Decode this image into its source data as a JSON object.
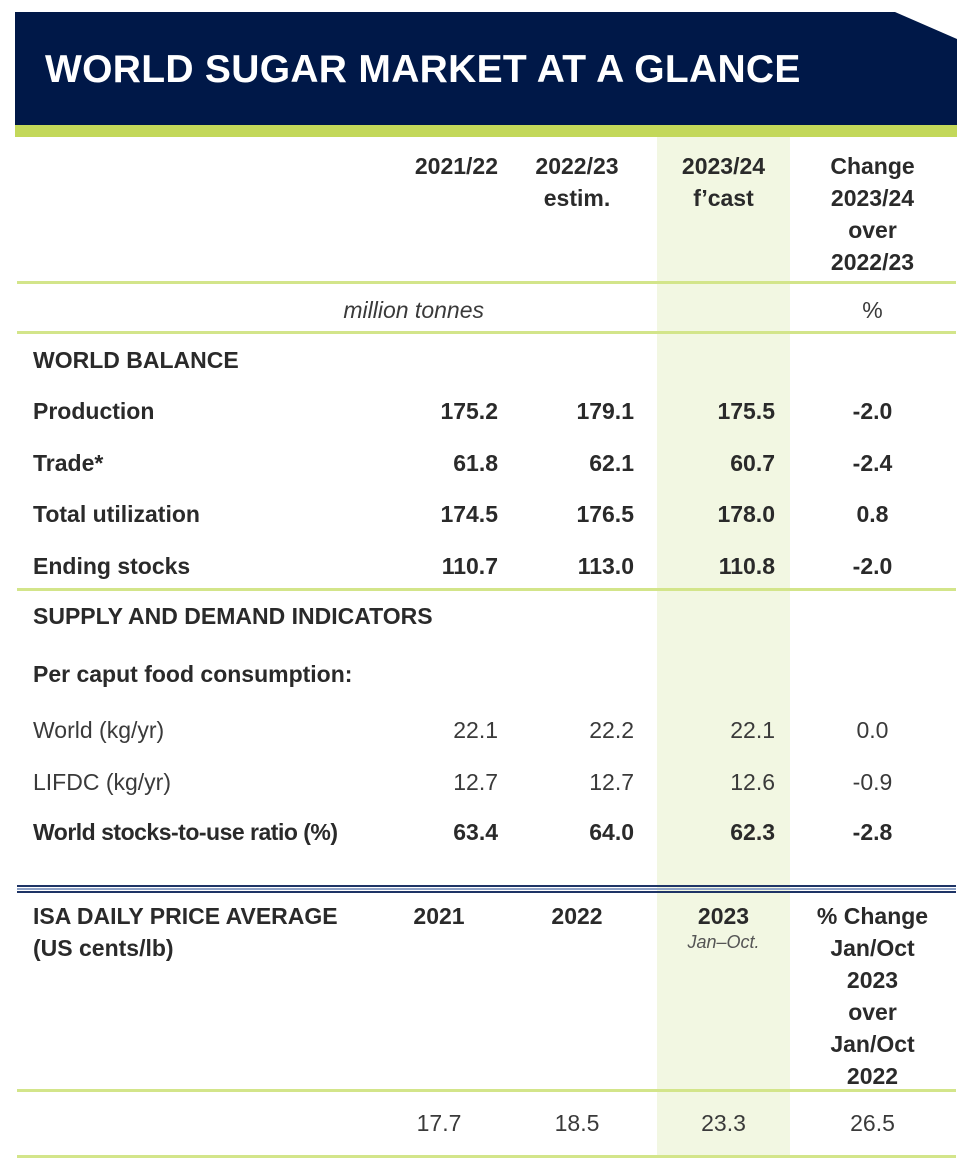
{
  "title": "WORLD SUGAR MARKET AT A GLANCE",
  "colors": {
    "navy": "#001848",
    "green": "#c3d85a",
    "highlight": "#f2f7e2"
  },
  "header": {
    "col1": "2021/22",
    "col2": [
      "2022/23",
      "estim."
    ],
    "col3": [
      "2023/24",
      "f’cast"
    ],
    "col4": [
      "Change",
      "2023/24",
      "over",
      "2022/23"
    ]
  },
  "units": {
    "main": "million tonnes",
    "change": "%"
  },
  "world_balance": {
    "heading": "WORLD BALANCE",
    "rows": [
      {
        "label": "Production",
        "v1": "175.2",
        "v2": "179.1",
        "v3": "175.5",
        "change": "-2.0"
      },
      {
        "label": "Trade*",
        "v1": "61.8",
        "v2": "62.1",
        "v3": "60.7",
        "change": "-2.4"
      },
      {
        "label": "Total utilization",
        "v1": "174.5",
        "v2": "176.5",
        "v3": "178.0",
        "change": "0.8"
      },
      {
        "label": "Ending stocks",
        "v1": "110.7",
        "v2": "113.0",
        "v3": "110.8",
        "change": "-2.0"
      }
    ]
  },
  "supply_demand": {
    "heading": "SUPPLY AND DEMAND INDICATORS",
    "subheading": "Per caput food consumption:",
    "rows": [
      {
        "label": "World (kg/yr)",
        "v1": "22.1",
        "v2": "22.2",
        "v3": "22.1",
        "change": "0.0"
      },
      {
        "label": "LIFDC (kg/yr)",
        "v1": "12.7",
        "v2": "12.7",
        "v3": "12.6",
        "change": "-0.9"
      },
      {
        "label": "World stocks-to-use ratio (%)",
        "v1": "63.4",
        "v2": "64.0",
        "v3": "62.3",
        "change": "-2.8"
      }
    ]
  },
  "price": {
    "heading": [
      "ISA DAILY PRICE AVERAGE",
      "(US cents/lb)"
    ],
    "col1": "2021",
    "col2": "2022",
    "col3": "2023",
    "col3_note": "Jan–Oct.",
    "col4": [
      "% Change",
      "Jan/Oct",
      "2023",
      "over",
      "Jan/Oct",
      "2022"
    ],
    "values": {
      "v1": "17.7",
      "v2": "18.5",
      "v3": "23.3",
      "change": "26.5"
    }
  }
}
